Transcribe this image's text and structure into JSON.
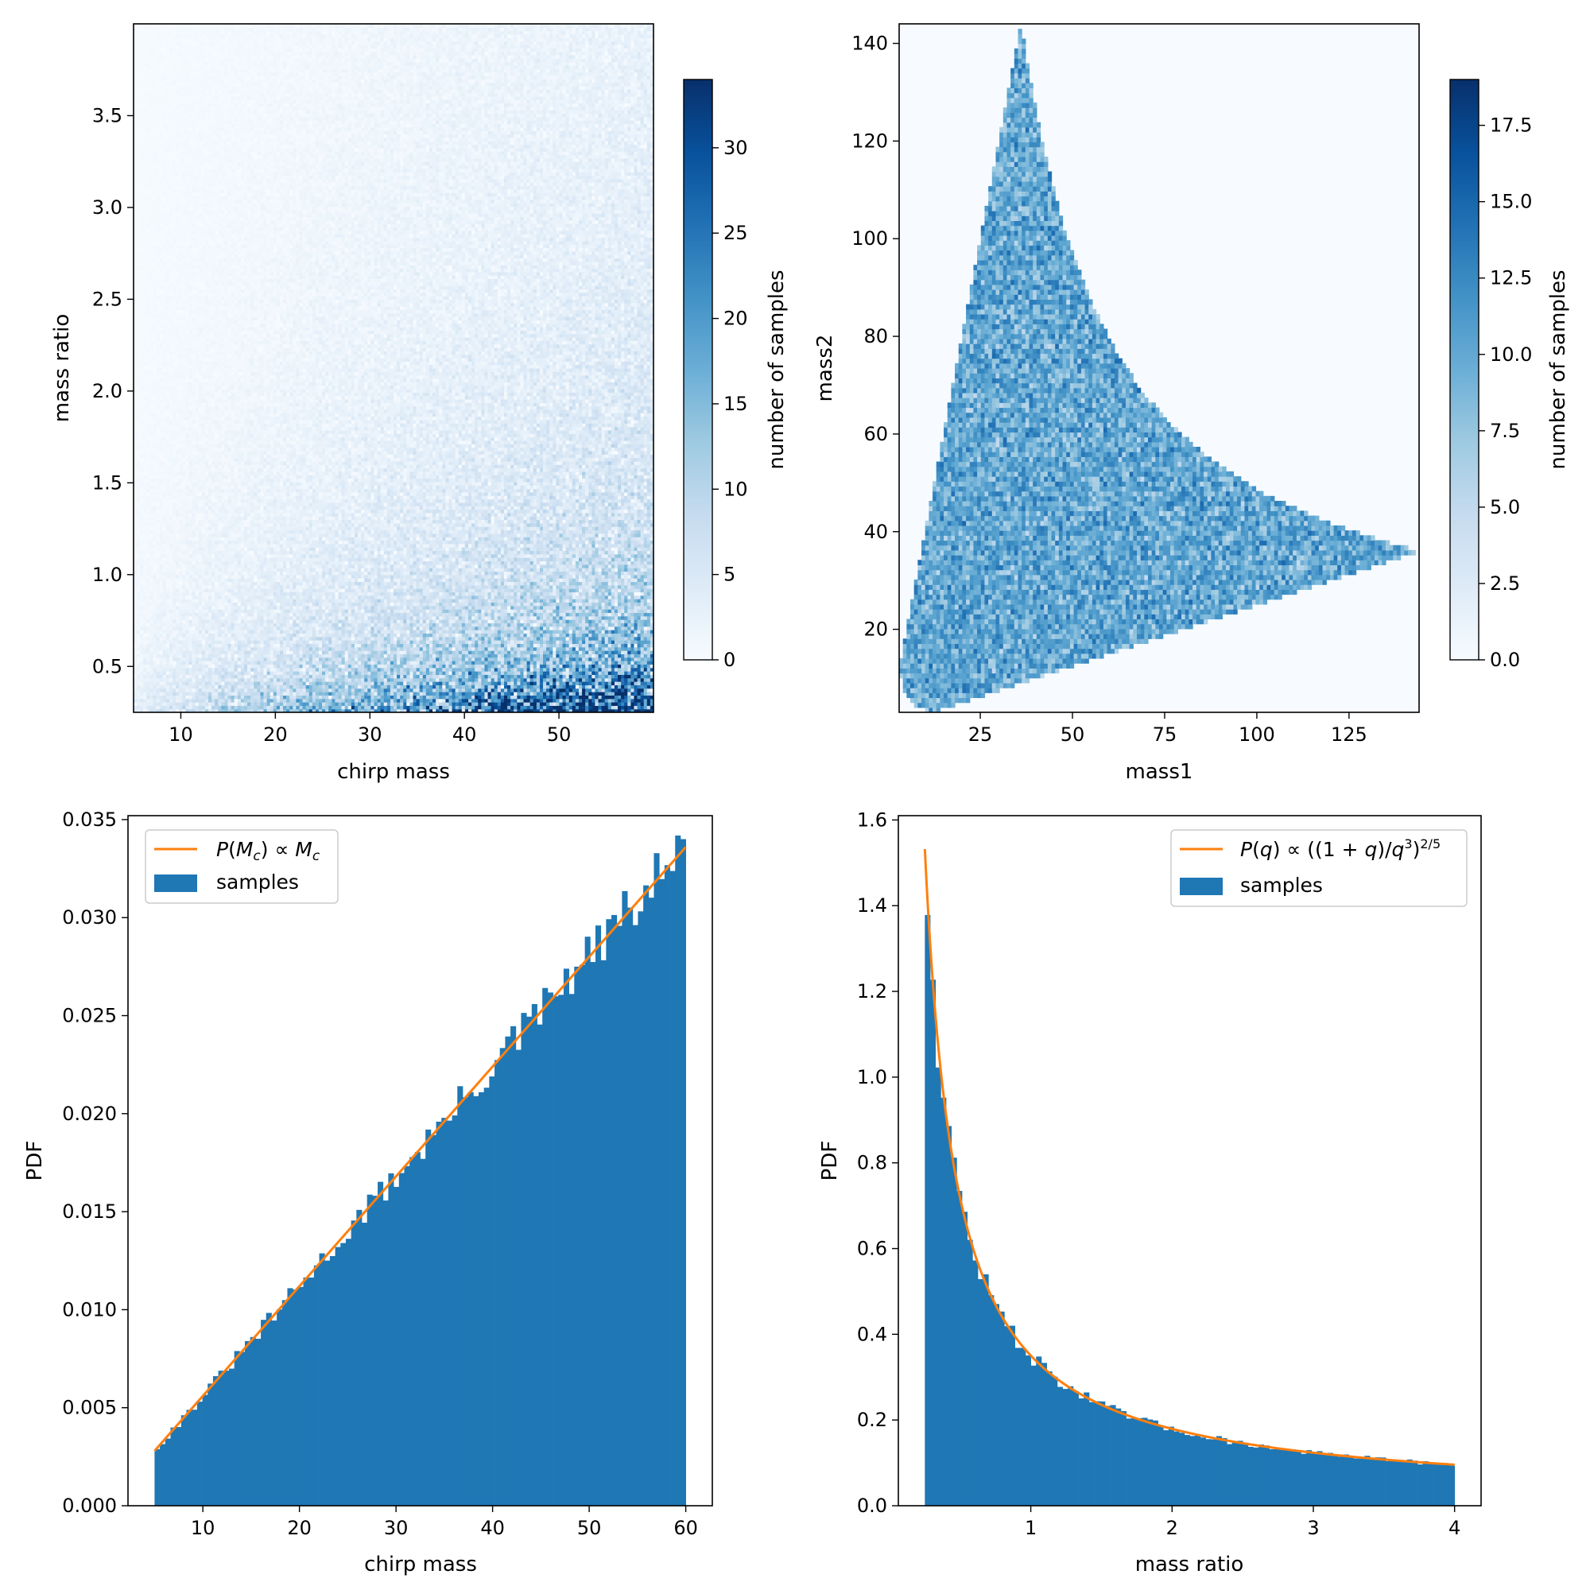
{
  "chart_data": [
    {
      "type": "heatmap",
      "xlabel": "chirp mass",
      "ylabel": "mass ratio",
      "xlim": [
        5,
        60
      ],
      "ylim": [
        0.25,
        4.0
      ],
      "xticks": [
        "10",
        "20",
        "30",
        "40",
        "50"
      ],
      "yticks": [
        "0.5",
        "1.0",
        "1.5",
        "2.0",
        "2.5",
        "3.0",
        "3.5"
      ],
      "colorbar": {
        "label": "number of samples",
        "range": [
          0,
          34
        ],
        "ticks": [
          "0",
          "5",
          "10",
          "15",
          "20",
          "25",
          "30"
        ]
      },
      "colormap": "Blues"
    },
    {
      "type": "heatmap",
      "xlabel": "mass1",
      "ylabel": "mass2",
      "xlim": [
        3,
        144
      ],
      "ylim": [
        3,
        144
      ],
      "xticks": [
        "25",
        "50",
        "75",
        "100",
        "125"
      ],
      "yticks": [
        "20",
        "40",
        "60",
        "80",
        "100",
        "120",
        "140"
      ],
      "colorbar": {
        "label": "number of samples",
        "range": [
          0,
          19
        ],
        "ticks": [
          "0.0",
          "2.5",
          "5.0",
          "7.5",
          "10.0",
          "12.5",
          "15.0",
          "17.5"
        ]
      },
      "colormap": "Blues"
    },
    {
      "type": "bar",
      "xlabel": "chirp mass",
      "ylabel": "PDF",
      "xlim": [
        2.25,
        62.75
      ],
      "ylim": [
        0,
        0.0352
      ],
      "xticks": [
        "10",
        "20",
        "30",
        "40",
        "50",
        "60"
      ],
      "yticks": [
        "0.000",
        "0.005",
        "0.010",
        "0.015",
        "0.020",
        "0.025",
        "0.030",
        "0.035"
      ],
      "bins": {
        "min": 5,
        "max": 60,
        "count": 100
      },
      "series": [
        {
          "name": "samples",
          "kind": "histogram",
          "color": "#1f77b4"
        },
        {
          "name": "$P(M_c) \\propto M_c$",
          "kind": "line",
          "color": "#ff7f0e",
          "x": [
            5,
            60
          ],
          "y": [
            0.0028,
            0.0336
          ]
        }
      ],
      "legend": "upper-left"
    },
    {
      "type": "bar",
      "xlabel": "mass ratio",
      "ylabel": "PDF",
      "xlim": [
        0.0625,
        4.1875
      ],
      "ylim": [
        0,
        1.61
      ],
      "xticks": [
        "1",
        "2",
        "3",
        "4"
      ],
      "yticks": [
        "0.0",
        "0.2",
        "0.4",
        "0.6",
        "0.8",
        "1.0",
        "1.2",
        "1.4",
        "1.6"
      ],
      "bins": {
        "min": 0.25,
        "max": 4.0,
        "count": 100
      },
      "series": [
        {
          "name": "samples",
          "kind": "histogram",
          "color": "#1f77b4"
        },
        {
          "name": "$P(q) \\propto ((1+q)/q^3)^{2/5}$",
          "kind": "line",
          "color": "#ff7f0e",
          "peak": 1.532
        }
      ],
      "legend": "upper-right"
    }
  ]
}
